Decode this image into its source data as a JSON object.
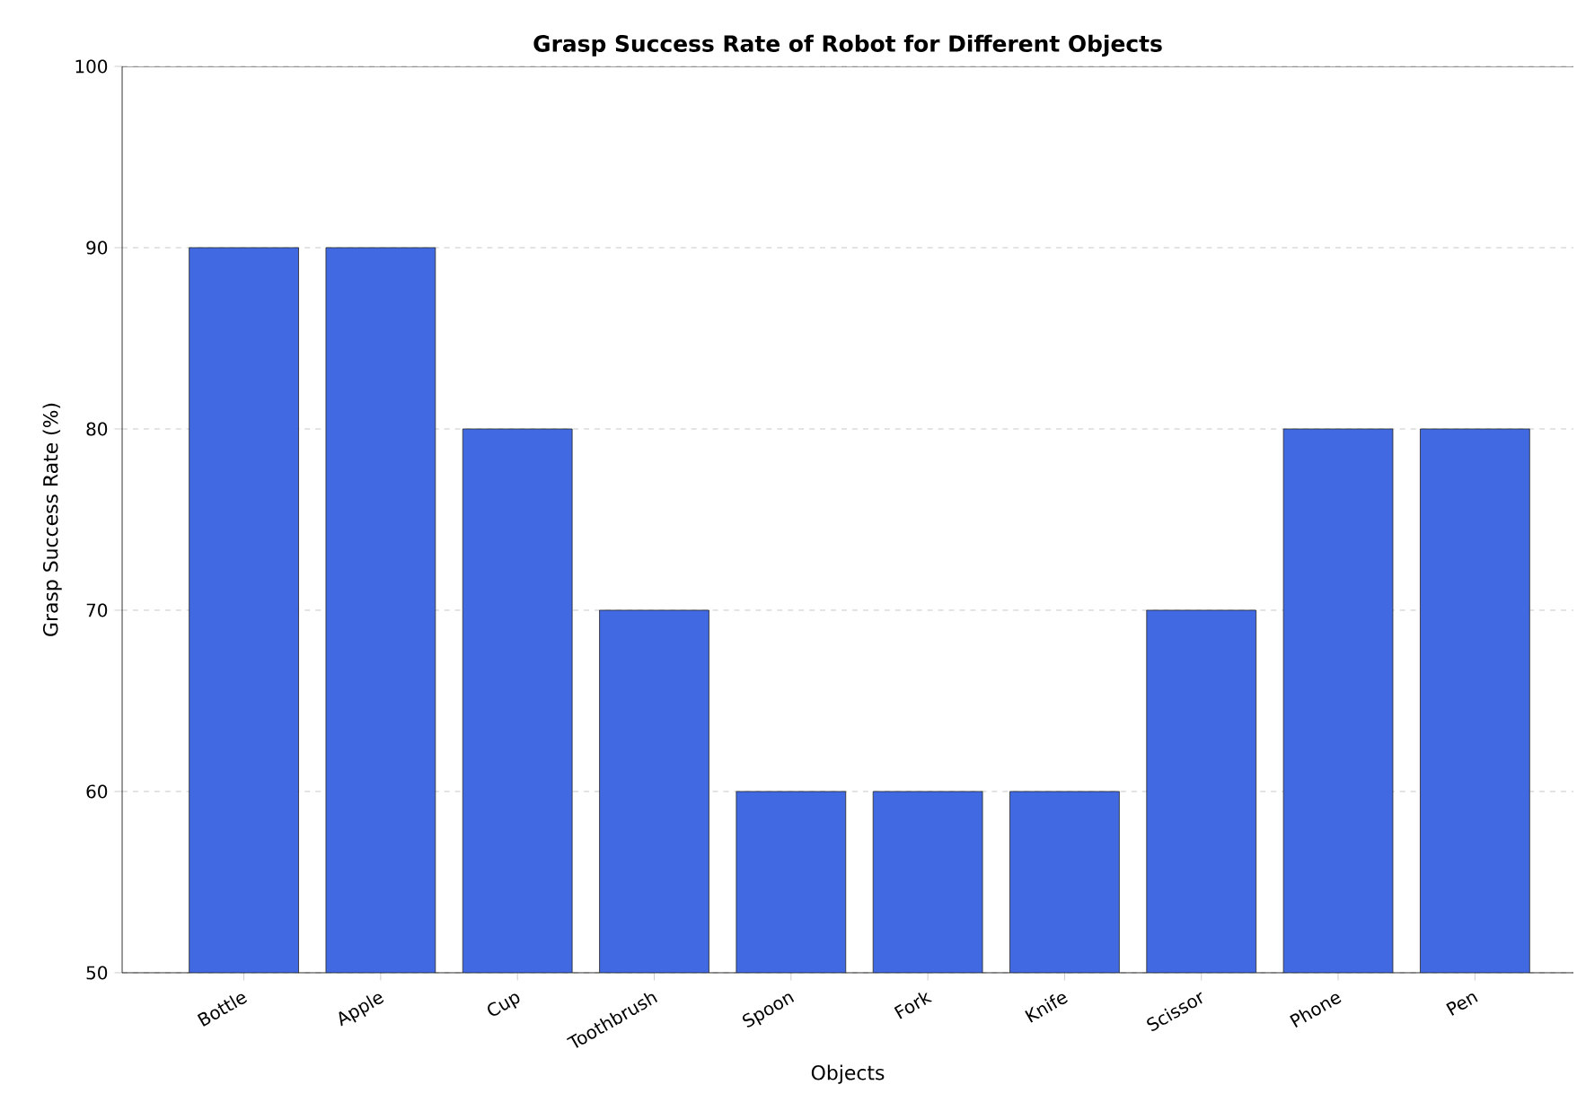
{
  "chart_data": {
    "type": "bar",
    "title": "Grasp Success Rate of Robot for Different Objects",
    "xlabel": "Objects",
    "ylabel": "Grasp Success Rate (%)",
    "categories": [
      "Bottle",
      "Apple",
      "Cup",
      "Toothbrush",
      "Spoon",
      "Fork",
      "Knife",
      "Scissor",
      "Phone",
      "Pen"
    ],
    "values": [
      90,
      90,
      80,
      70,
      60,
      60,
      60,
      70,
      80,
      80
    ],
    "color": "#4169e1",
    "ylim": [
      50,
      100
    ],
    "yticks": [
      50,
      60,
      70,
      80,
      90,
      100
    ],
    "grid": "y"
  }
}
